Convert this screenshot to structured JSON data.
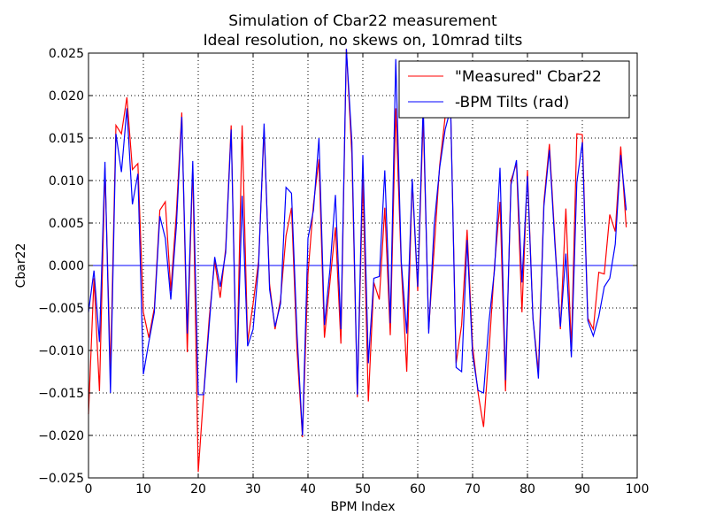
{
  "chart_data": {
    "type": "line",
    "title": "Simulation of Cbar22 measurement",
    "subtitle": "Ideal resolution, no skews on, 10mrad tilts",
    "xlabel": "BPM Index",
    "ylabel": "Cbar22",
    "xlim": [
      0,
      100
    ],
    "ylim": [
      -0.025,
      0.025
    ],
    "x_ticks": [
      0,
      10,
      20,
      30,
      40,
      50,
      60,
      70,
      80,
      90,
      100
    ],
    "y_ticks": [
      -0.025,
      -0.02,
      -0.015,
      -0.01,
      -0.005,
      0.0,
      0.005,
      0.01,
      0.015,
      0.02,
      0.025
    ],
    "x_tick_labels": [
      "0",
      "10",
      "20",
      "30",
      "40",
      "50",
      "60",
      "70",
      "80",
      "90",
      "100"
    ],
    "y_tick_labels": [
      "−0.025",
      "−0.020",
      "−0.015",
      "−0.010",
      "−0.005",
      "0.000",
      "0.005",
      "0.010",
      "0.015",
      "0.020",
      "0.025"
    ],
    "grid": true,
    "legend_position": "top-right",
    "zero_line": 0.0,
    "series": [
      {
        "name": "\"Measured\" Cbar22",
        "color": "#ff0000",
        "values": [
          -0.0175,
          -0.0015,
          -0.0148,
          0.0115,
          -0.0125,
          0.0165,
          0.0155,
          0.0198,
          0.0113,
          0.012,
          -0.0055,
          -0.0085,
          -0.005,
          0.0065,
          0.0075,
          -0.003,
          0.006,
          0.018,
          -0.0102,
          0.0117,
          -0.0243,
          -0.015,
          -0.0062,
          0.0005,
          -0.0038,
          0.002,
          0.0165,
          -0.0135,
          0.0165,
          -0.009,
          -0.0045,
          0.0005,
          0.016,
          -0.0022,
          -0.0075,
          -0.004,
          0.0035,
          0.0068,
          -0.01,
          -0.0202,
          -0.001,
          0.0072,
          0.0125,
          -0.0085,
          -0.002,
          0.0045,
          -0.0092,
          0.0255,
          0.013,
          -0.0155,
          0.0102,
          -0.016,
          -0.002,
          -0.004,
          0.0068,
          -0.0082,
          0.0185,
          0.0,
          -0.0125,
          0.01,
          -0.003,
          0.0175,
          -0.0075,
          0.002,
          0.0118,
          0.0175,
          0.0185,
          -0.0115,
          -0.007,
          0.0042,
          -0.0095,
          -0.015,
          -0.019,
          -0.01,
          0.0,
          0.0075,
          -0.0148,
          0.01,
          0.012,
          -0.0055,
          0.0112,
          -0.0062,
          -0.0125,
          0.0075,
          0.0143,
          0.003,
          -0.0075,
          0.0067,
          -0.0098,
          0.0155,
          0.0154,
          -0.0062,
          -0.0075,
          -0.0008,
          -0.001,
          0.006,
          0.004,
          0.014,
          0.0045
        ],
        "x_start": 0
      },
      {
        "name": "-BPM Tilts (rad)",
        "color": "#0000ff",
        "values": [
          -0.0055,
          -0.0006,
          -0.009,
          0.0122,
          -0.015,
          0.0155,
          0.011,
          0.0185,
          0.0072,
          0.0108,
          -0.0128,
          -0.009,
          -0.0055,
          0.0058,
          0.0032,
          -0.004,
          0.0045,
          0.0175,
          -0.008,
          0.0123,
          -0.0152,
          -0.0152,
          -0.007,
          0.001,
          -0.0025,
          0.0015,
          0.016,
          -0.0138,
          0.0082,
          -0.0095,
          -0.0075,
          0.0,
          0.0167,
          -0.0028,
          -0.0072,
          -0.0045,
          0.0092,
          0.0085,
          -0.008,
          -0.02,
          0.0032,
          0.0065,
          0.015,
          -0.007,
          -0.0005,
          0.0083,
          -0.0075,
          0.0255,
          0.0145,
          -0.0152,
          0.013,
          -0.0115,
          -0.0015,
          -0.0013,
          0.0112,
          -0.0068,
          0.0243,
          0.0005,
          -0.008,
          0.0102,
          -0.0025,
          0.019,
          -0.008,
          0.0048,
          0.0115,
          0.016,
          0.0185,
          -0.012,
          -0.0125,
          0.003,
          -0.0105,
          -0.0147,
          -0.015,
          -0.0065,
          -0.0005,
          0.0115,
          -0.0135,
          0.0095,
          0.0124,
          -0.002,
          0.0105,
          -0.0062,
          -0.0133,
          0.007,
          0.0136,
          0.0025,
          -0.0072,
          0.0014,
          -0.0108,
          0.0098,
          0.0145,
          -0.0065,
          -0.0083,
          -0.006,
          -0.0025,
          -0.0015,
          0.0025,
          0.013,
          0.0065
        ],
        "x_start": 0
      }
    ]
  }
}
